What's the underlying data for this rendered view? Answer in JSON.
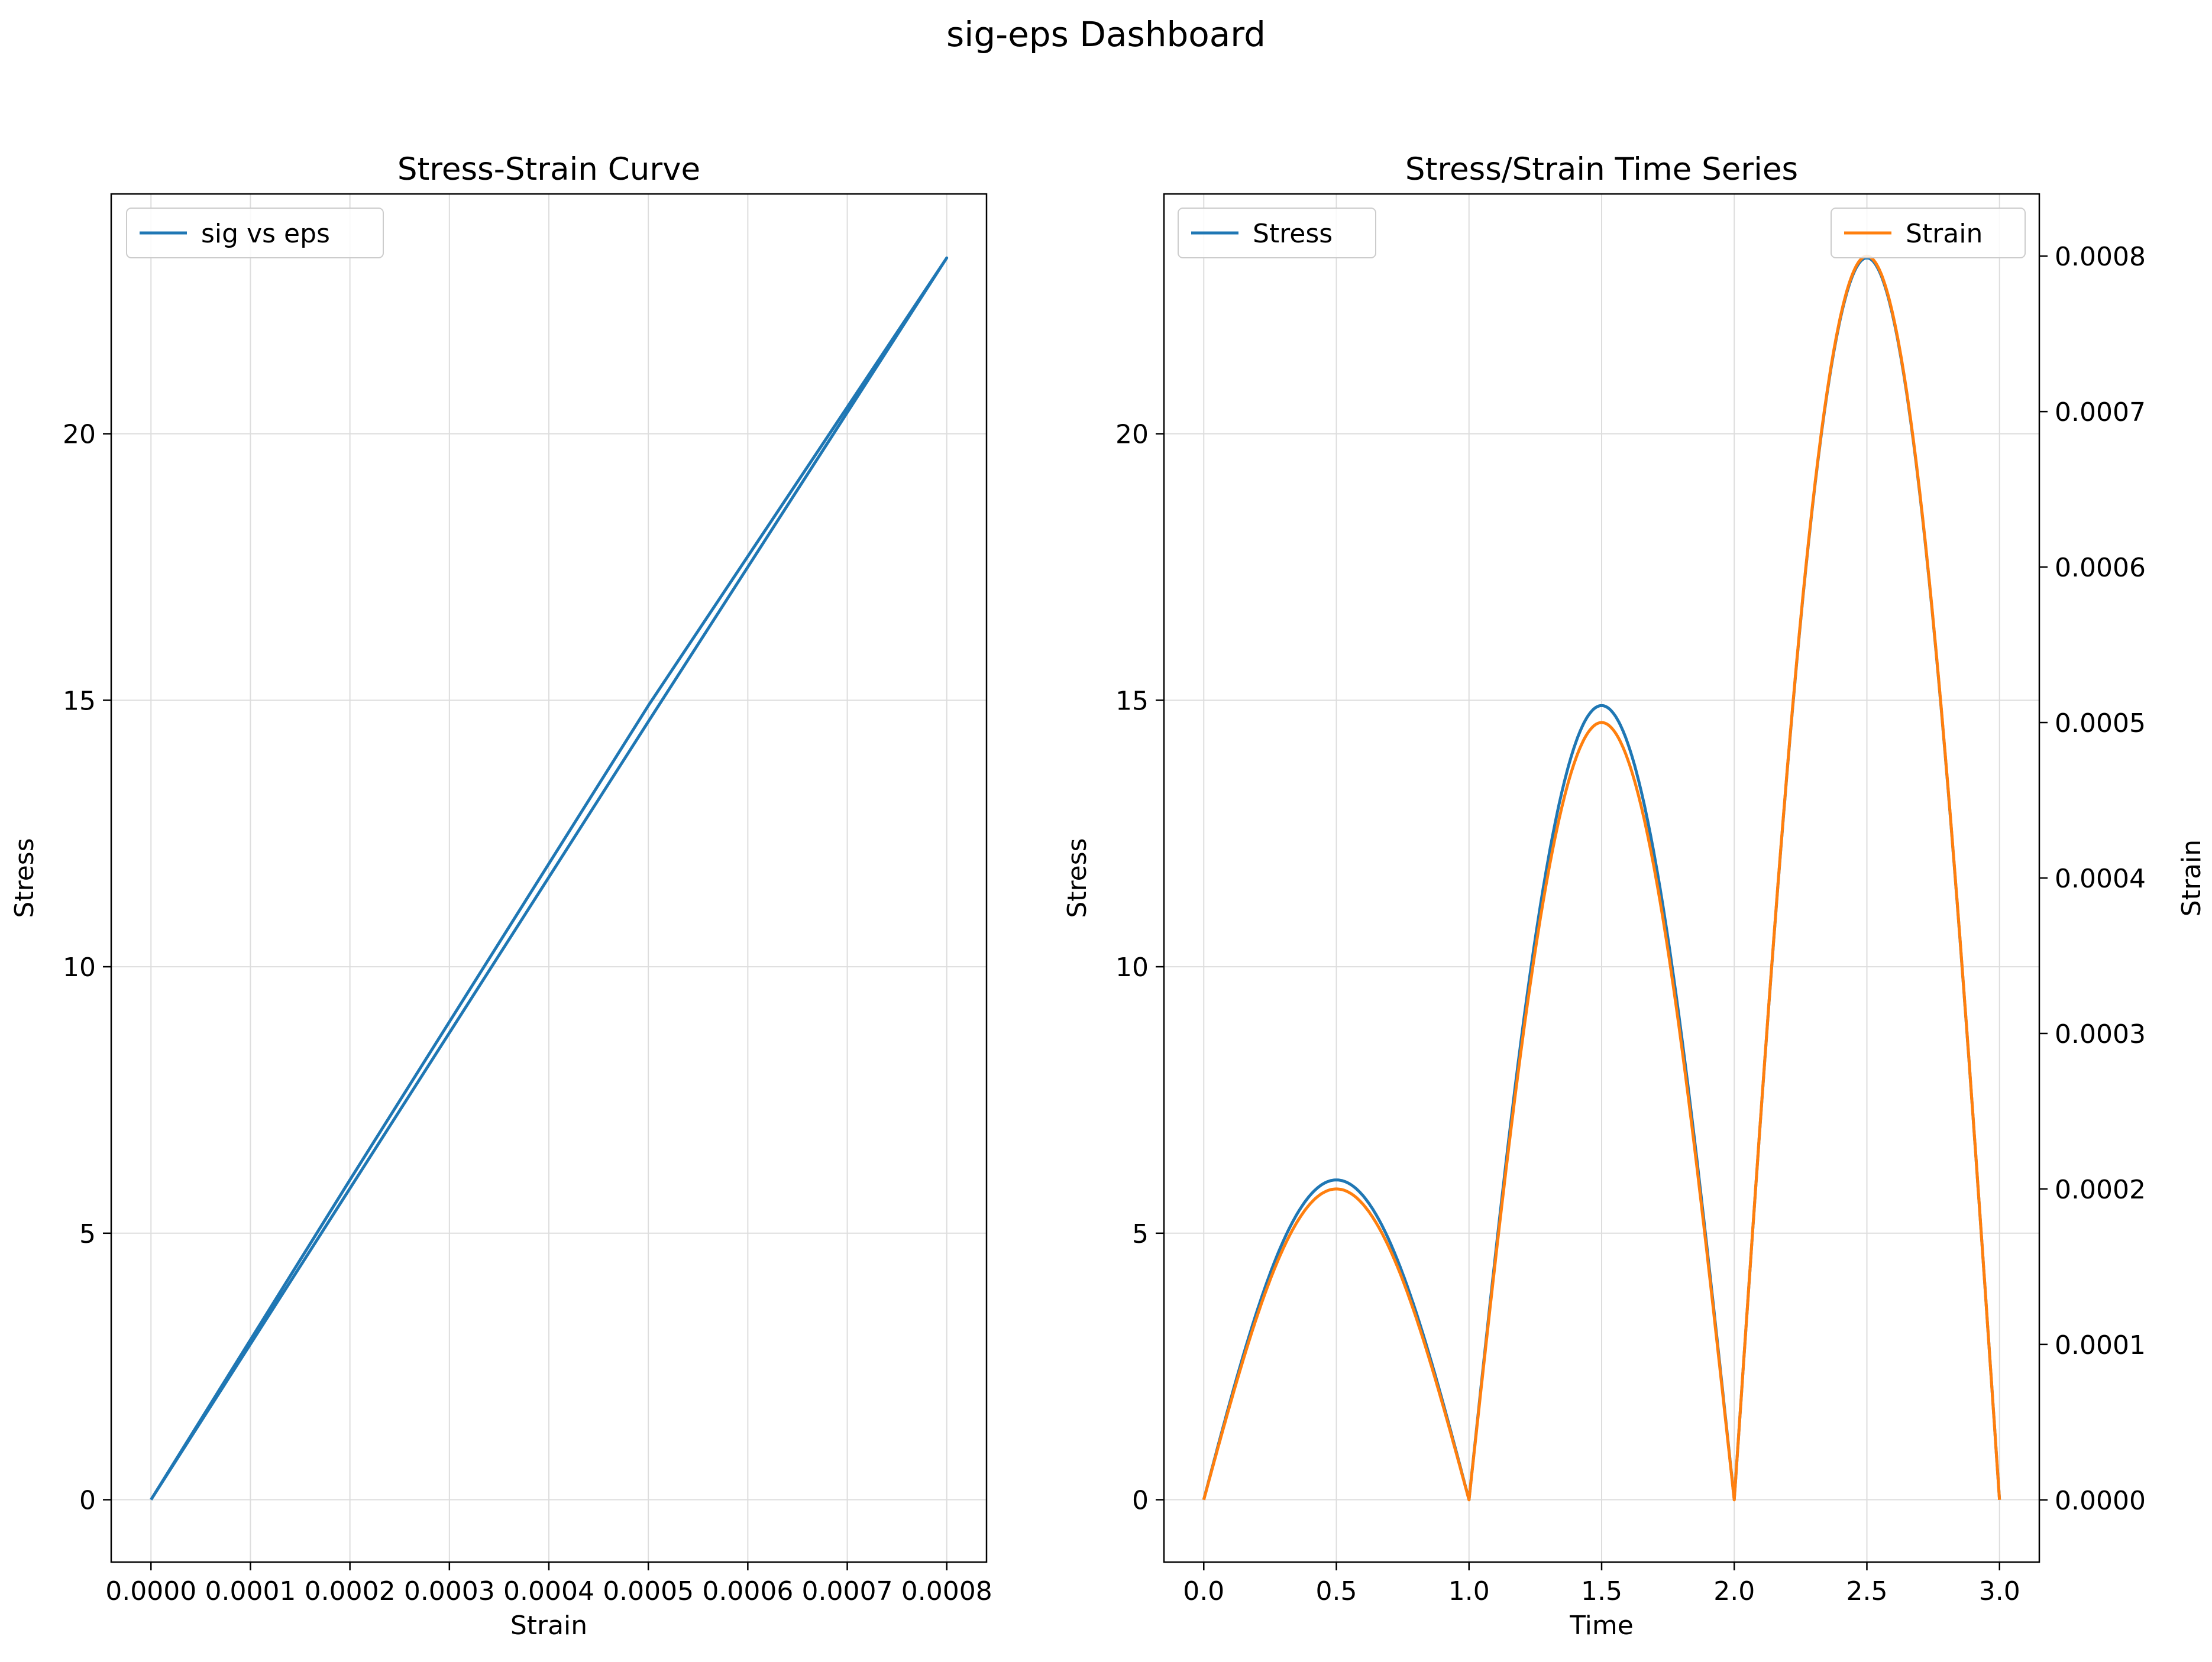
{
  "figure": {
    "title": "sig-eps Dashboard"
  },
  "colors": {
    "stress": "#1f77b4",
    "strain": "#ff7f0e",
    "grid": "#dddddd"
  },
  "chart_data": [
    {
      "type": "line",
      "title": "Stress-Strain Curve",
      "xlabel": "Strain",
      "ylabel": "Stress",
      "xlim": [
        -4e-05,
        0.00084
      ],
      "ylim": [
        -1.17,
        24.5
      ],
      "xticks": [
        0,
        0.0001,
        0.0002,
        0.0003,
        0.0004,
        0.0005,
        0.0006,
        0.0007,
        0.0008
      ],
      "xtick_labels": [
        "0.0000",
        "0.0001",
        "0.0002",
        "0.0003",
        "0.0004",
        "0.0005",
        "0.0006",
        "0.0007",
        "0.0008"
      ],
      "yticks": [
        0,
        5,
        10,
        15,
        20
      ],
      "ytick_labels": [
        "0",
        "5",
        "10",
        "15",
        "20"
      ],
      "grid": true,
      "legend": "upper-left",
      "series": [
        {
          "name": "sig vs eps",
          "color": "#1f77b4",
          "points": [
            [
              0,
              0
            ],
            [
              0.0002,
              6.0
            ],
            [
              0.0005,
              14.9
            ],
            [
              0.0008,
              23.3
            ],
            [
              0.0005,
              14.6
            ],
            [
              0.0002,
              5.84
            ],
            [
              0,
              0
            ]
          ]
        }
      ]
    },
    {
      "type": "line",
      "title": "Stress/Strain Time Series",
      "xlabel": "Time",
      "ylabel": "Stress",
      "ylabel_right": "Strain",
      "xlim": [
        -0.15,
        3.15
      ],
      "ylim": [
        -1.17,
        24.5
      ],
      "ylim_right": [
        -4e-05,
        0.00084
      ],
      "xticks": [
        0,
        0.5,
        1.0,
        1.5,
        2.0,
        2.5,
        3.0
      ],
      "xtick_labels": [
        "0.0",
        "0.5",
        "1.0",
        "1.5",
        "2.0",
        "2.5",
        "3.0"
      ],
      "yticks": [
        0,
        5,
        10,
        15,
        20
      ],
      "ytick_labels": [
        "0",
        "5",
        "10",
        "15",
        "20"
      ],
      "yticks_right": [
        0,
        0.0001,
        0.0002,
        0.0003,
        0.0004,
        0.0005,
        0.0006,
        0.0007,
        0.0008
      ],
      "ytick_labels_right": [
        "0.0000",
        "0.0001",
        "0.0002",
        "0.0003",
        "0.0004",
        "0.0005",
        "0.0006",
        "0.0007",
        "0.0008"
      ],
      "grid": true,
      "legend": "upper-left",
      "legend_right": "upper-right",
      "series": [
        {
          "name": "Stress",
          "color": "#1f77b4",
          "axis": "left",
          "model": "abs-sine",
          "period": 1.0,
          "amplitudes": [
            6.0,
            14.9,
            23.3
          ]
        },
        {
          "name": "Strain",
          "color": "#ff7f0e",
          "axis": "right",
          "model": "abs-sine",
          "period": 1.0,
          "amplitudes": [
            0.0002,
            0.0005,
            0.0008
          ]
        }
      ]
    }
  ]
}
